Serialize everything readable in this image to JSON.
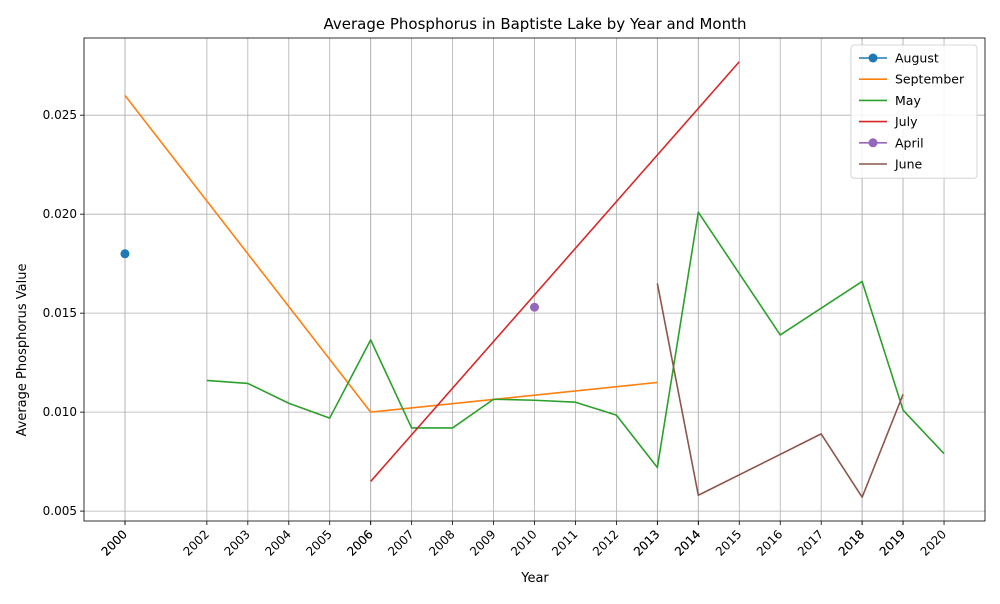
{
  "chart_data": {
    "type": "line",
    "title": "Average Phosphorus in Baptiste Lake by Year and Month",
    "xlabel": "Year",
    "ylabel": "Average Phosphorus Value",
    "xlim": [
      1999,
      2021
    ],
    "ylim": [
      0.0045,
      0.0289
    ],
    "x_ticks": [
      "2000",
      "2000",
      "2002",
      "2003",
      "2004",
      "2005",
      "2006",
      "2006",
      "2007",
      "2008",
      "2009",
      "2010",
      "2011",
      "2012",
      "2013",
      "2013",
      "2014",
      "2014",
      "2015",
      "2016",
      "2017",
      "2018",
      "2018",
      "2019",
      "2019",
      "2020"
    ],
    "x_tick_values": [
      2000,
      2000,
      2002,
      2003,
      2004,
      2005,
      2006,
      2006,
      2007,
      2008,
      2009,
      2010,
      2011,
      2012,
      2013,
      2013,
      2014,
      2014,
      2015,
      2016,
      2017,
      2018,
      2018,
      2019,
      2019,
      2020
    ],
    "y_ticks": [
      "0.005",
      "0.010",
      "0.015",
      "0.020",
      "0.025"
    ],
    "y_tick_values": [
      0.005,
      0.01,
      0.015,
      0.02,
      0.025
    ],
    "grid": true,
    "legend_position": "top-right",
    "series": [
      {
        "name": "August",
        "color": "#1f77b4",
        "marker": true,
        "x": [
          2000
        ],
        "y": [
          0.018
        ]
      },
      {
        "name": "September",
        "color": "#ff7f0e",
        "marker": false,
        "x": [
          2000,
          2006,
          2013
        ],
        "y": [
          0.026,
          0.01,
          0.0115
        ]
      },
      {
        "name": "May",
        "color": "#2ca02c",
        "marker": false,
        "x": [
          2002,
          2003,
          2004,
          2005,
          2006,
          2007,
          2008,
          2009,
          2010,
          2011,
          2012,
          2013,
          2014,
          2016,
          2018,
          2019,
          2020
        ],
        "y": [
          0.0116,
          0.01145,
          0.01045,
          0.0097,
          0.01365,
          0.0092,
          0.0092,
          0.01065,
          0.0106,
          0.0105,
          0.00985,
          0.0072,
          0.0201,
          0.0139,
          0.0166,
          0.0101,
          0.0079
        ]
      },
      {
        "name": "July",
        "color": "#d62728",
        "marker": false,
        "x": [
          2006,
          2015
        ],
        "y": [
          0.0065,
          0.0277
        ]
      },
      {
        "name": "April",
        "color": "#9467bd",
        "marker": true,
        "x": [
          2010
        ],
        "y": [
          0.0153
        ]
      },
      {
        "name": "June",
        "color": "#8c564b",
        "marker": false,
        "x": [
          2013,
          2014,
          2017,
          2018,
          2019
        ],
        "y": [
          0.0165,
          0.0058,
          0.0089,
          0.0057,
          0.0109
        ]
      }
    ]
  }
}
